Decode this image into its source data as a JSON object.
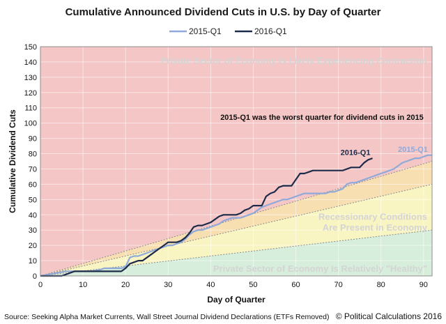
{
  "chart_data": {
    "type": "line",
    "title": "Cumulative Announced Dividend Cuts in U.S. by Day of Quarter",
    "xlabel": "Day of Quarter",
    "ylabel": "Cumulative Dividend Cuts",
    "xlim": [
      0,
      92
    ],
    "ylim": [
      0,
      150
    ],
    "xticks": [
      0,
      10,
      20,
      30,
      40,
      50,
      60,
      70,
      80,
      90
    ],
    "yticks": [
      0,
      10,
      20,
      30,
      40,
      50,
      60,
      70,
      80,
      90,
      100,
      110,
      120,
      130,
      140,
      150
    ],
    "grid": true,
    "legend_position": "top-center",
    "series": [
      {
        "name": "2015-Q1",
        "color": "#8fa9d8",
        "x": [
          0,
          2,
          4,
          6,
          8,
          10,
          12,
          14,
          15,
          17,
          19,
          20,
          21,
          22,
          23,
          24,
          25,
          26,
          27,
          28,
          29,
          30,
          31,
          32,
          33,
          34,
          35,
          36,
          37,
          38,
          39,
          40,
          41,
          42,
          43,
          44,
          45,
          46,
          47,
          48,
          49,
          50,
          51,
          52,
          53,
          54,
          55,
          56,
          57,
          58,
          59,
          60,
          61,
          62,
          63,
          64,
          65,
          66,
          67,
          68,
          69,
          70,
          71,
          72,
          73,
          74,
          75,
          76,
          77,
          78,
          79,
          80,
          81,
          82,
          83,
          84,
          85,
          86,
          87,
          88,
          89,
          90,
          91,
          92
        ],
        "values": [
          0,
          1,
          2,
          3,
          3,
          3,
          3,
          4,
          5,
          5,
          5,
          6,
          12,
          13,
          13,
          14,
          15,
          16,
          17,
          18,
          19,
          20,
          20,
          21,
          22,
          24,
          27,
          29,
          30,
          30,
          31,
          32,
          33,
          34,
          36,
          37,
          38,
          38,
          38,
          39,
          40,
          41,
          43,
          45,
          46,
          47,
          48,
          49,
          50,
          50,
          51,
          52,
          53,
          54,
          54,
          54,
          54,
          54,
          54,
          55,
          55,
          56,
          57,
          60,
          61,
          61,
          62,
          63,
          64,
          65,
          66,
          67,
          68,
          69,
          70,
          72,
          74,
          75,
          76,
          77,
          77,
          78,
          79,
          79
        ]
      },
      {
        "name": "2016-Q1",
        "color": "#1c2b4a",
        "x": [
          0,
          3,
          5,
          6,
          7,
          8,
          10,
          12,
          14,
          16,
          18,
          19,
          20,
          21,
          22,
          23,
          24,
          25,
          26,
          27,
          28,
          29,
          30,
          31,
          32,
          33,
          34,
          35,
          36,
          37,
          38,
          39,
          40,
          41,
          42,
          43,
          44,
          45,
          46,
          47,
          48,
          49,
          50,
          51,
          52,
          53,
          54,
          55,
          56,
          57,
          58,
          59,
          60,
          61,
          62,
          63,
          64,
          65,
          66,
          67,
          68,
          69,
          70,
          71,
          72,
          73,
          74,
          75,
          76,
          77,
          78
        ],
        "values": [
          0,
          0,
          0,
          1,
          2,
          3,
          3,
          3,
          3,
          3,
          3,
          3,
          5,
          8,
          9,
          10,
          10,
          12,
          14,
          16,
          18,
          20,
          22,
          22,
          22,
          23,
          25,
          28,
          32,
          33,
          33,
          34,
          35,
          37,
          39,
          40,
          40,
          40,
          40,
          41,
          43,
          44,
          46,
          46,
          46,
          52,
          54,
          55,
          58,
          59,
          59,
          59,
          63,
          67,
          67,
          68,
          69,
          69,
          69,
          69,
          69,
          69,
          69,
          69,
          70,
          71,
          71,
          71,
          74,
          76,
          77
        ]
      }
    ],
    "reference_lines": [
      {
        "x": [
          0,
          92
        ],
        "values": [
          0,
          30
        ],
        "color": "#8a8a8a"
      },
      {
        "x": [
          0,
          92
        ],
        "values": [
          0,
          60
        ],
        "color": "#8a8a8a"
      },
      {
        "x": [
          0,
          92
        ],
        "values": [
          0,
          75
        ],
        "color": "#8a8a8a"
      }
    ],
    "zones": [
      {
        "label": "Private Sector of Economy Is Likely Experiencing Contraction",
        "color": "#f5c6c6"
      },
      {
        "label": "Recessionary Conditions",
        "label2": "Are Present in Economy",
        "color": "#f8f5c2"
      },
      {
        "label": "Private Sector of Economy Is Relatively \"Healthy\"",
        "color": "#d6eedb"
      }
    ],
    "orange_band_color": "#f8dfb2",
    "annotations": [
      {
        "text": "2015-Q1 was the worst quarter for dividend cuts in 2015"
      },
      {
        "text": "2016-Q1"
      },
      {
        "text": "2015-Q1"
      }
    ]
  },
  "footer": {
    "source": "Source: Seeking Alpha Market Currents, Wall Street Journal Dividend Declarations (ETFs Removed)",
    "copyright": "© Political Calculations 2016"
  }
}
